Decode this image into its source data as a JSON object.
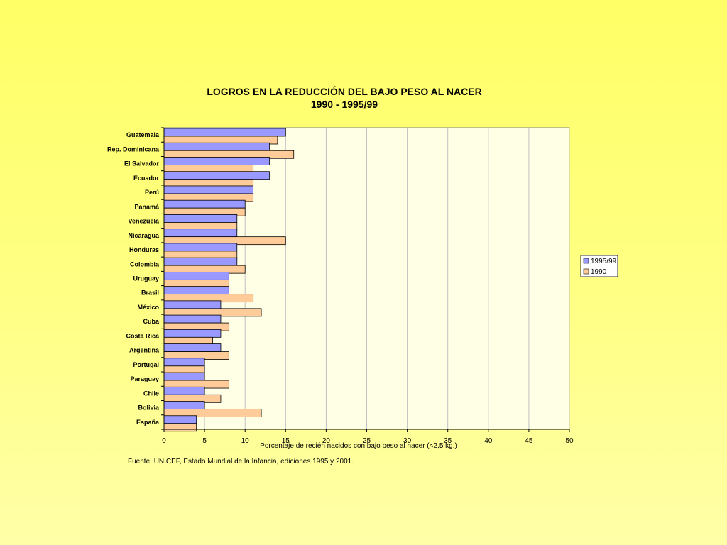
{
  "source_note": "Fuente:  UNICEF, Estado Mundial de la Infancia, ediciones 1995 y 2001.",
  "chart_data": {
    "type": "bar",
    "orientation": "horizontal",
    "title": "LOGROS EN LA REDUCCIÓN DEL BAJO PESO AL NACER",
    "subtitle": "1990 - 1995/99",
    "xlabel": "Porcentaje de recién nacidos con bajo peso al nacer (<2,5 kg.)",
    "ylabel": "",
    "xlim": [
      0,
      50
    ],
    "xticks": [
      0,
      5,
      10,
      15,
      20,
      25,
      30,
      35,
      40,
      45,
      50
    ],
    "grid": true,
    "legend_position": "right",
    "categories": [
      "Guatemala",
      "Rep. Dominicana",
      "El Salvador",
      "Ecuador",
      "Perú",
      "Panamá",
      "Venezuela",
      "Nicaragua",
      "Honduras",
      "Colombia",
      "Uruguay",
      "Brasil",
      "México",
      "Cuba",
      "Costa Rica",
      "Argentina",
      "Portugal",
      "Paraguay",
      "Chile",
      "Bolivia",
      "España"
    ],
    "series": [
      {
        "name": "1995/99",
        "color": "#9999ff",
        "values": [
          15,
          13,
          13,
          13,
          11,
          10,
          9,
          9,
          9,
          9,
          8,
          8,
          7,
          7,
          7,
          7,
          5,
          5,
          5,
          5,
          4
        ]
      },
      {
        "name": "1990",
        "color": "#ffcc99",
        "values": [
          14,
          16,
          11,
          11,
          11,
          10,
          9,
          15,
          9,
          10,
          8,
          11,
          12,
          8,
          6,
          8,
          5,
          8,
          7,
          12,
          4
        ]
      }
    ],
    "plot_background": "#ffffe6"
  }
}
